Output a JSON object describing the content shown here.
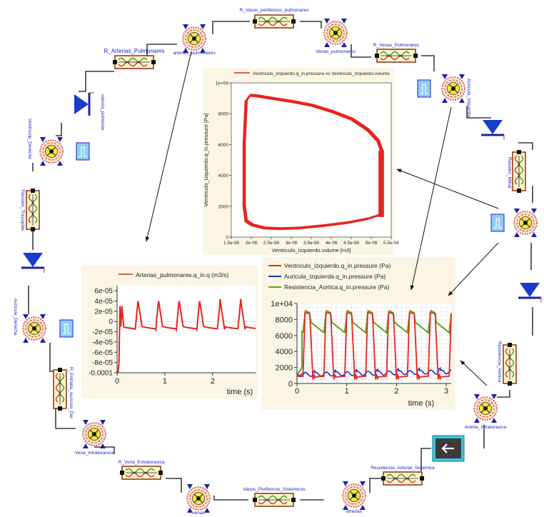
{
  "components": {
    "r_vasos_perifericos_pulmonares": "R_Vasos_perifericos_pulmonares",
    "r_arterias_pulmonares": "R_Arterias_Pulmonares",
    "arterias_pulmonares": "arterias_pulmonares",
    "venas_pulmonares": "Venas_pulmonares",
    "r_venas_pulmonares": "R_Venas_Pulmonares",
    "atrio_izquierdo": "Auricula_Izquierda",
    "valvula_pulmonar": "valvula_pulmonar",
    "valvula_mitral": "valvula_mitral",
    "ventriculo_derecho": "Ventriculo_Derecho",
    "elas_v_derecho": "elas_v_derecho",
    "resistor_tricuspide": "Resistor_Tricuspide",
    "resistor_mitral": "Resistor_Mitral",
    "auricula_derecha": "Auricula_Derecha",
    "elas_a_derecha": "elas_a_derecha",
    "ventriculo_izquierdo": "Ventriculo_Izquierdo",
    "elas_v_izquierdo": "elas_v_izquierdo",
    "r_entrada_auricula_der": "R_Entrada_Auricula_Der",
    "resistencia_aortica": "Resistencia_Aortica",
    "vena_intratoracica": "Vena_Intratoracica",
    "arteria_intratoracica": "Arteria_Intratoracica",
    "r_vena_extratoracica": "R_Vena_Extratoracica",
    "resistencia_arterial_sistemica": "Resistencia_Arterial_Sistemica",
    "vasos_perifericos_sistemicos": "Vasos_Perifericos_Sistemicos",
    "venas": "venas",
    "arterias": "arterias"
  },
  "chart_data": [
    {
      "type": "line",
      "legend": [
        "Ventriculo_Izquierdo.q_in.pressure vs Ventriculo_Izquierdo.volume"
      ],
      "xlabel": "Ventriculo_Izquierdo.volume [m3]",
      "ylabel": "Ventriculo_Izquierdo.q_in.pressure [Pa]",
      "xlim": [
        1.5e-06,
        5.5e-06
      ],
      "ylim": [
        0,
        10000
      ],
      "x_ticks": [
        "1.5e-06",
        "2e-06",
        "2.5e-06",
        "3e-06",
        "3.5e-06",
        "4e-06",
        "4.5e-06",
        "5e-06",
        "5.5e-06"
      ],
      "y_ticks": [
        "0",
        "2000",
        "4000",
        "6000",
        "8000",
        "1e+04"
      ],
      "series": [
        {
          "name": "Ventriculo_Izquierdo.q_in.pressure vs Ventriculo_Izquierdo.volume",
          "color": "#e8231c",
          "x": [
            5.25e-06,
            5.15e-06,
            4.9e-06,
            4.5e-06,
            4e-06,
            3.5e-06,
            3e-06,
            2.5e-06,
            2.15e-06,
            1.95e-06,
            1.85e-06,
            1.8e-06,
            1.8e-06,
            1.85e-06,
            2e-06,
            2.3e-06,
            2.7e-06,
            3.2e-06,
            3.8e-06,
            4.4e-06,
            4.9e-06,
            5.2e-06,
            5.25e-06,
            5.25e-06
          ],
          "y": [
            5500,
            6200,
            6900,
            7600,
            8100,
            8500,
            8750,
            8950,
            9100,
            9150,
            8800,
            6000,
            2000,
            1000,
            750,
            550,
            500,
            550,
            700,
            900,
            1150,
            1400,
            2500,
            5500
          ]
        }
      ]
    },
    {
      "type": "line",
      "legend": [
        "Arterias_pulmonares.q_in.q (m3/s)"
      ],
      "xlabel": "time (s)",
      "ylabel": "",
      "xlim": [
        0,
        2.9
      ],
      "ylim": [
        -0.0001,
        7e-05
      ],
      "x_ticks": [
        "0",
        "1",
        "2"
      ],
      "y_ticks": [
        "6e-05",
        "4e-05",
        "2e-05",
        "0",
        "-2e-05",
        "-4e-05",
        "-6e-05",
        "-8e-05",
        "-0.0001"
      ],
      "series": [
        {
          "name": "Arterias_pulmonares.q_in.q (m3/s)",
          "color": "#e8231c",
          "period": 0.4,
          "baseline": -2e-05,
          "peak": 4e-05
        }
      ]
    },
    {
      "type": "line",
      "legend": [
        "Ventriculo_Izquierdo.q_in.pressure (Pa)",
        "Auricula_izquierda.q_in.pressure (Pa)",
        "Resistencia_Aortica.q_in.pressure (Pa)"
      ],
      "xlabel": "time (s)",
      "ylabel": "",
      "xlim": [
        0,
        3.1
      ],
      "ylim": [
        0,
        10000
      ],
      "x_ticks": [
        "0",
        "1",
        "2",
        "3"
      ],
      "y_ticks": [
        "0",
        "2000",
        "4000",
        "6000",
        "8000",
        "1e+04"
      ],
      "series": [
        {
          "name": "Ventriculo_Izquierdo.q_in.pressure (Pa)",
          "color": "#e8231c",
          "period": 0.4,
          "peak": 9000,
          "trough": 500
        },
        {
          "name": "Auricula_izquierda.q_in.pressure (Pa)",
          "color": "#2030c8",
          "period": 0.4,
          "base": 1200,
          "amp": 400
        },
        {
          "name": "Resistencia_Aortica.q_in.pressure (Pa)",
          "color": "#5aa820",
          "period": 0.4,
          "peak": 9000,
          "trough": 6300
        }
      ]
    }
  ]
}
